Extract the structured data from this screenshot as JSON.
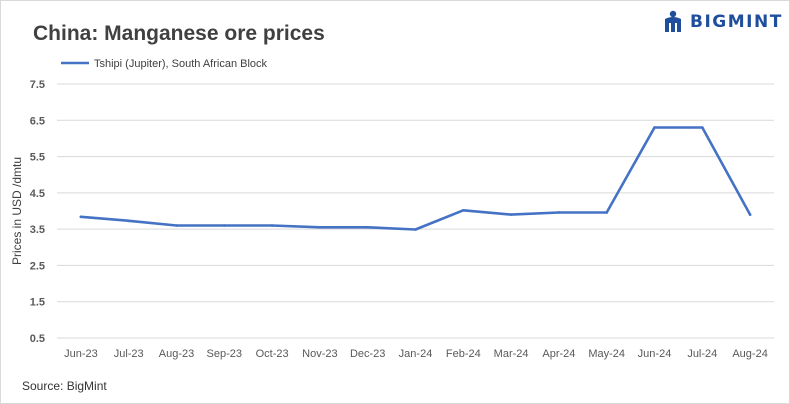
{
  "header": {
    "title": "China: Manganese ore prices",
    "brand": "BIGMINT",
    "logo_icon": "bigmint-logo-icon",
    "brand_color": "#1f4e9c"
  },
  "footer": {
    "source": "Source: BigMint"
  },
  "chart_data": {
    "type": "line",
    "title": "China: Manganese ore prices",
    "xlabel": "",
    "ylabel": "Prices in USD /dmtu",
    "ylim": [
      0.5,
      7.5
    ],
    "yticks": [
      "0.5",
      "1.5",
      "2.5",
      "3.5",
      "4.5",
      "5.5",
      "6.5",
      "7.5"
    ],
    "ytick_values": [
      0.5,
      1.5,
      2.5,
      3.5,
      4.5,
      5.5,
      6.5,
      7.5
    ],
    "grid": true,
    "legend": "top-left",
    "categories": [
      "Jun-23",
      "Jul-23",
      "Aug-23",
      "Sep-23",
      "Oct-23",
      "Nov-23",
      "Dec-23",
      "Jan-24",
      "Feb-24",
      "Mar-24",
      "Apr-24",
      "May-24",
      "Jun-24",
      "Jul-24",
      "Aug-24"
    ],
    "series": [
      {
        "name": "Tshipi (Jupiter), South African Block",
        "color": "#4472c4",
        "values": [
          3.84,
          3.73,
          3.6,
          3.6,
          3.6,
          3.55,
          3.55,
          3.49,
          4.02,
          3.9,
          3.96,
          3.96,
          6.3,
          6.3,
          3.9
        ]
      }
    ]
  }
}
